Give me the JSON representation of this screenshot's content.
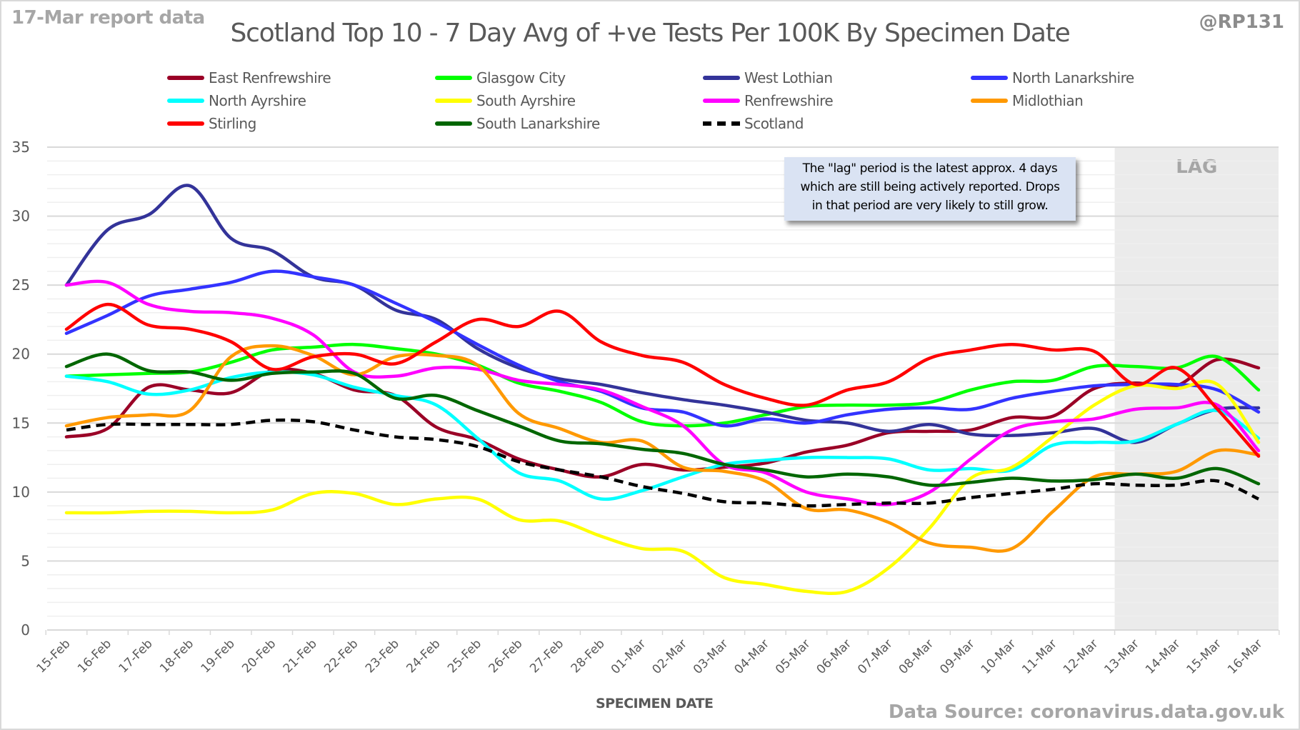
{
  "header": {
    "report_label": "17-Mar report data",
    "handle": "@RP131",
    "source": "Data Source: coronavirus.data.gov.uk"
  },
  "annotation": {
    "lines": [
      "The \"lag\" period is the latest approx. 4 days",
      "which are still being actively reported.  Drops",
      "in that period are very likely to still grow."
    ]
  },
  "chart_data": {
    "type": "line",
    "title": "Scotland Top 10 - 7 Day Avg of +ve Tests Per 100K By Specimen Date",
    "xlabel": "SPECIMEN DATE",
    "ylabel": "",
    "ylim": [
      0,
      35
    ],
    "yticks": [
      0,
      5,
      10,
      15,
      20,
      25,
      30,
      35
    ],
    "ytick_labels": [
      "0",
      "5",
      "10",
      "15",
      "20",
      "25",
      "30",
      "35"
    ],
    "minor_grid_step": 1,
    "grid": true,
    "legend_position": "top",
    "shaded_region": {
      "label": "LAG",
      "from": "13-Mar",
      "to": "16-Mar",
      "color": "#ebebeb"
    },
    "x": [
      "15-Feb",
      "16-Feb",
      "17-Feb",
      "18-Feb",
      "19-Feb",
      "20-Feb",
      "21-Feb",
      "22-Feb",
      "23-Feb",
      "24-Feb",
      "25-Feb",
      "26-Feb",
      "27-Feb",
      "28-Feb",
      "01-Mar",
      "02-Mar",
      "03-Mar",
      "04-Mar",
      "05-Mar",
      "06-Mar",
      "07-Mar",
      "08-Mar",
      "09-Mar",
      "10-Mar",
      "11-Mar",
      "12-Mar",
      "13-Mar",
      "14-Mar",
      "15-Mar",
      "16-Mar"
    ],
    "series": [
      {
        "name": "East Renfrewshire",
        "color": "#9a0026",
        "dashed": false,
        "values": [
          14.0,
          14.6,
          17.6,
          17.4,
          17.2,
          18.8,
          18.6,
          17.4,
          17.0,
          14.7,
          13.8,
          12.4,
          11.6,
          11.1,
          12.0,
          11.6,
          11.8,
          12.1,
          12.9,
          13.4,
          14.3,
          14.4,
          14.5,
          15.4,
          15.5,
          17.5,
          17.9,
          17.7,
          19.6,
          19.0
        ]
      },
      {
        "name": "Glasgow City",
        "color": "#00ff00",
        "dashed": false,
        "values": [
          18.4,
          18.5,
          18.6,
          18.7,
          19.4,
          20.3,
          20.5,
          20.7,
          20.4,
          20.0,
          19.2,
          17.9,
          17.3,
          16.5,
          15.1,
          14.8,
          15.0,
          15.6,
          16.2,
          16.3,
          16.3,
          16.5,
          17.4,
          18.0,
          18.1,
          19.1,
          19.1,
          19.0,
          19.8,
          17.4
        ]
      },
      {
        "name": "West Lothian",
        "color": "#333399",
        "dashed": false,
        "values": [
          25.0,
          29.0,
          30.1,
          32.2,
          28.4,
          27.5,
          25.6,
          25.0,
          23.2,
          22.5,
          20.4,
          19.0,
          18.2,
          17.8,
          17.2,
          16.7,
          16.3,
          15.8,
          15.2,
          15.0,
          14.4,
          14.9,
          14.2,
          14.1,
          14.3,
          14.6,
          13.6,
          14.9,
          16.0,
          16.1
        ]
      },
      {
        "name": "North Lanarkshire",
        "color": "#3333ff",
        "dashed": false,
        "values": [
          21.5,
          22.8,
          24.2,
          24.7,
          25.2,
          26.0,
          25.6,
          25.0,
          23.7,
          22.3,
          20.7,
          19.2,
          18.0,
          17.3,
          16.1,
          15.8,
          14.8,
          15.3,
          15.0,
          15.6,
          16.0,
          16.1,
          16.0,
          16.8,
          17.3,
          17.7,
          17.8,
          17.8,
          17.4,
          15.8
        ]
      },
      {
        "name": "North Ayrshire",
        "color": "#00ffff",
        "dashed": false,
        "values": [
          18.4,
          18.0,
          17.1,
          17.4,
          18.3,
          18.7,
          18.5,
          17.6,
          17.0,
          16.3,
          13.9,
          11.4,
          10.8,
          9.5,
          10.1,
          11.1,
          12.0,
          12.3,
          12.5,
          12.5,
          12.4,
          11.6,
          11.7,
          11.6,
          13.4,
          13.6,
          13.7,
          14.9,
          15.9,
          13.9
        ]
      },
      {
        "name": "South Ayrshire",
        "color": "#ffff00",
        "dashed": false,
        "values": [
          8.5,
          8.5,
          8.6,
          8.6,
          8.5,
          8.7,
          9.9,
          9.9,
          9.1,
          9.5,
          9.5,
          8.0,
          7.9,
          6.8,
          5.9,
          5.7,
          3.8,
          3.3,
          2.8,
          2.8,
          4.5,
          7.4,
          11.0,
          11.8,
          14.0,
          16.3,
          17.7,
          17.5,
          17.8,
          13.6
        ]
      },
      {
        "name": "Renfrewshire",
        "color": "#ff00ff",
        "dashed": false,
        "values": [
          25.0,
          25.2,
          23.6,
          23.1,
          23.0,
          22.6,
          21.4,
          18.7,
          18.4,
          19.0,
          18.9,
          18.1,
          17.8,
          17.4,
          16.2,
          14.8,
          12.0,
          11.4,
          10.0,
          9.5,
          9.1,
          10.0,
          12.4,
          14.5,
          15.1,
          15.3,
          16.0,
          16.1,
          16.3,
          13.0
        ]
      },
      {
        "name": "Midlothian",
        "color": "#ff9900",
        "dashed": false,
        "values": [
          14.8,
          15.4,
          15.6,
          15.9,
          19.8,
          20.6,
          19.9,
          18.5,
          19.8,
          19.9,
          19.2,
          15.7,
          14.6,
          13.6,
          13.7,
          11.8,
          11.5,
          10.8,
          8.8,
          8.7,
          7.8,
          6.3,
          6.0,
          5.9,
          8.6,
          11.1,
          11.3,
          11.5,
          13.0,
          12.7
        ]
      },
      {
        "name": "Stirling",
        "color": "#ff0000",
        "dashed": false,
        "values": [
          21.8,
          23.6,
          22.1,
          21.8,
          20.9,
          18.9,
          19.8,
          20.0,
          19.3,
          20.9,
          22.5,
          22.0,
          23.1,
          20.9,
          19.9,
          19.4,
          17.8,
          16.8,
          16.3,
          17.4,
          18.0,
          19.7,
          20.3,
          20.7,
          20.3,
          20.2,
          17.8,
          19.0,
          16.0,
          12.6
        ]
      },
      {
        "name": "South Lanarkshire",
        "color": "#006600",
        "dashed": false,
        "values": [
          19.1,
          20.0,
          18.8,
          18.7,
          18.1,
          18.6,
          18.7,
          18.6,
          16.8,
          17.0,
          15.9,
          14.8,
          13.7,
          13.5,
          13.1,
          12.8,
          12.0,
          11.6,
          11.1,
          11.3,
          11.1,
          10.5,
          10.7,
          11.0,
          10.8,
          10.9,
          11.3,
          11.0,
          11.7,
          10.6
        ]
      },
      {
        "name": "Scotland",
        "color": "#000000",
        "dashed": true,
        "values": [
          14.5,
          14.9,
          14.9,
          14.9,
          14.9,
          15.2,
          15.1,
          14.5,
          14.0,
          13.8,
          13.3,
          12.2,
          11.6,
          11.1,
          10.4,
          9.9,
          9.3,
          9.2,
          9.0,
          9.1,
          9.2,
          9.2,
          9.6,
          9.9,
          10.2,
          10.6,
          10.5,
          10.5,
          10.8,
          9.5
        ]
      }
    ]
  }
}
